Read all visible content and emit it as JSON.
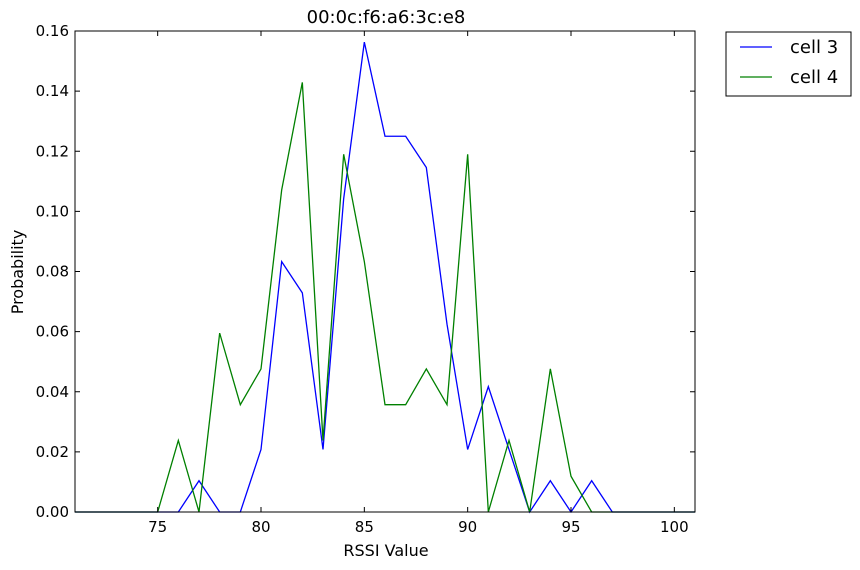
{
  "chart_data": {
    "type": "line",
    "title": "00:0c:f6:a6:3c:e8",
    "xlabel": "RSSI Value",
    "ylabel": "Probability",
    "xlim": [
      71,
      101
    ],
    "ylim": [
      0,
      0.16
    ],
    "xticks": [
      75,
      80,
      85,
      90,
      95,
      100
    ],
    "yticks": [
      "0.00",
      "0.02",
      "0.04",
      "0.06",
      "0.08",
      "0.10",
      "0.12",
      "0.14",
      "0.16"
    ],
    "grid": false,
    "legend_position": "outside-top-right",
    "x": [
      71,
      72,
      73,
      74,
      75,
      76,
      77,
      78,
      79,
      80,
      81,
      82,
      83,
      84,
      85,
      86,
      87,
      88,
      89,
      90,
      91,
      92,
      93,
      94,
      95,
      96,
      97,
      98,
      99,
      100,
      101
    ],
    "series": [
      {
        "name": "cell 3",
        "color": "#0000ff",
        "values": [
          0,
          0,
          0,
          0,
          0,
          0,
          0.0104,
          0,
          0,
          0.0208,
          0.0833,
          0.0729,
          0.0208,
          0.1042,
          0.1563,
          0.125,
          0.125,
          0.1146,
          0.0625,
          0.0208,
          0.0417,
          0.0208,
          0,
          0.0104,
          0,
          0.0104,
          0,
          0,
          0,
          0,
          0
        ]
      },
      {
        "name": "cell 4",
        "color": "#008000",
        "values": [
          0,
          0,
          0,
          0,
          0,
          0.0238,
          0,
          0.0595,
          0.0357,
          0.0476,
          0.1071,
          0.1429,
          0.0238,
          0.119,
          0.0833,
          0.0357,
          0.0357,
          0.0476,
          0.0357,
          0.119,
          0,
          0.0238,
          0,
          0.0476,
          0.0119,
          0,
          0,
          0,
          0,
          0,
          0
        ]
      }
    ]
  }
}
